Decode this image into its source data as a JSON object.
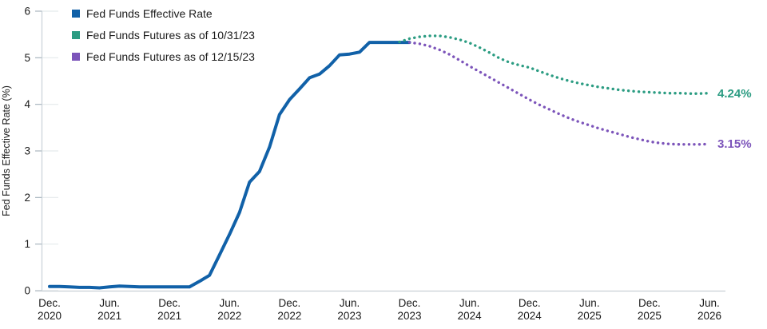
{
  "chart_data": {
    "type": "line",
    "title": "",
    "ylabel": "Fed Funds Effective Rate (%)",
    "ylim": [
      0,
      6
    ],
    "yticks": [
      0,
      1,
      2,
      3,
      4,
      5,
      6
    ],
    "grid": false,
    "legend_position": "top-left",
    "x_unit": "months since Dec 2020",
    "xticks": [
      {
        "m": 0,
        "line1": "Dec.",
        "line2": "2020"
      },
      {
        "m": 6,
        "line1": "Jun.",
        "line2": "2021"
      },
      {
        "m": 12,
        "line1": "Dec.",
        "line2": "2021"
      },
      {
        "m": 18,
        "line1": "Jun.",
        "line2": "2022"
      },
      {
        "m": 24,
        "line1": "Dec.",
        "line2": "2022"
      },
      {
        "m": 30,
        "line1": "Jun.",
        "line2": "2023"
      },
      {
        "m": 36,
        "line1": "Dec.",
        "line2": "2023"
      },
      {
        "m": 42,
        "line1": "Jun.",
        "line2": "2024"
      },
      {
        "m": 48,
        "line1": "Dec.",
        "line2": "2024"
      },
      {
        "m": 54,
        "line1": "Jun.",
        "line2": "2025"
      },
      {
        "m": 60,
        "line1": "Dec.",
        "line2": "2025"
      },
      {
        "m": 66,
        "line1": "Jun.",
        "line2": "2026"
      }
    ],
    "series": [
      {
        "name": "Fed Funds Effective Rate",
        "color": "#1161a8",
        "style": "solid",
        "start_m": 0,
        "end_label": "",
        "values": [
          0.09,
          0.09,
          0.08,
          0.07,
          0.07,
          0.06,
          0.08,
          0.1,
          0.09,
          0.08,
          0.08,
          0.08,
          0.08,
          0.08,
          0.08,
          0.2,
          0.33,
          0.77,
          1.21,
          1.68,
          2.33,
          2.56,
          3.08,
          3.78,
          4.1,
          4.33,
          4.57,
          4.65,
          4.83,
          5.06,
          5.08,
          5.12,
          5.33,
          5.33,
          5.33,
          5.33,
          5.33
        ]
      },
      {
        "name": "Fed Funds Futures as of 10/31/23",
        "color": "#2b9c82",
        "style": "dotted",
        "start_m": 35,
        "end_label": "4.24%",
        "values": [
          5.34,
          5.41,
          5.45,
          5.47,
          5.47,
          5.44,
          5.39,
          5.32,
          5.22,
          5.11,
          4.99,
          4.9,
          4.84,
          4.79,
          4.71,
          4.63,
          4.56,
          4.5,
          4.45,
          4.41,
          4.37,
          4.34,
          4.31,
          4.29,
          4.27,
          4.26,
          4.25,
          4.24,
          4.24,
          4.23,
          4.23,
          4.24
        ]
      },
      {
        "name": "Fed Funds Futures as of 12/15/23",
        "color": "#7c54ba",
        "style": "dotted",
        "start_m": 36,
        "end_label": "3.15%",
        "values": [
          5.33,
          5.3,
          5.25,
          5.17,
          5.07,
          4.95,
          4.82,
          4.7,
          4.58,
          4.46,
          4.34,
          4.22,
          4.1,
          3.99,
          3.89,
          3.79,
          3.7,
          3.62,
          3.55,
          3.48,
          3.42,
          3.36,
          3.3,
          3.25,
          3.2,
          3.17,
          3.15,
          3.14,
          3.14,
          3.14,
          3.15
        ]
      }
    ],
    "colors": {
      "axis_line": "#c9d2d8",
      "tick_mark": "#a9b6bf",
      "tick_stub": "#e4e9ec",
      "bottom_axis": "#c9cfd4",
      "text": "#1a1a1a"
    }
  }
}
